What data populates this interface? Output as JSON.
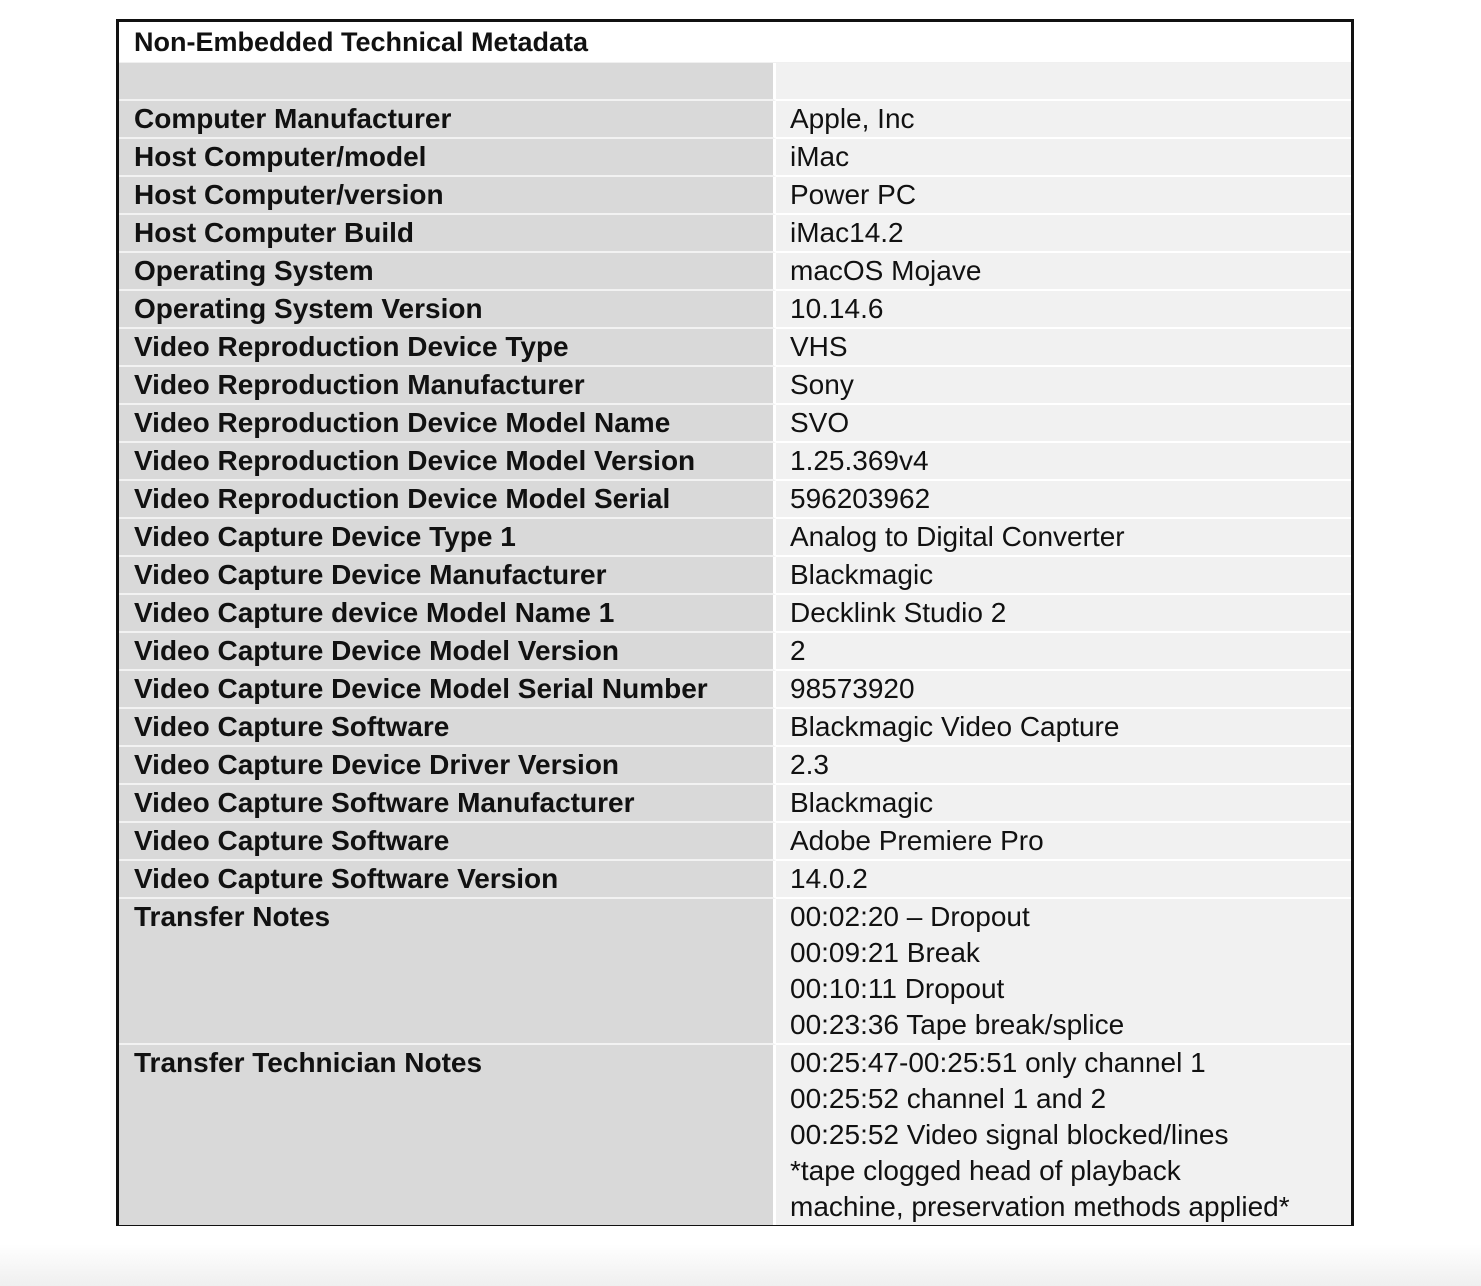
{
  "title": "Non-Embedded Technical Metadata",
  "rows": [
    {
      "label": "Computer Manufacturer",
      "value": "Apple, Inc"
    },
    {
      "label": "Host Computer/model",
      "value": "iMac"
    },
    {
      "label": "Host Computer/version",
      "value": "Power PC"
    },
    {
      "label": "Host Computer Build",
      "value": "iMac14.2"
    },
    {
      "label": "Operating System",
      "value": "macOS Mojave"
    },
    {
      "label": "Operating System Version",
      "value": "10.14.6"
    },
    {
      "label": "Video Reproduction Device Type",
      "value": "VHS"
    },
    {
      "label": "Video Reproduction Manufacturer",
      "value": "Sony"
    },
    {
      "label": "Video Reproduction Device Model Name",
      "value": "SVO"
    },
    {
      "label": "Video Reproduction Device Model Version",
      "value": "1.25.369v4"
    },
    {
      "label": "Video Reproduction Device Model Serial",
      "value": "596203962"
    },
    {
      "label": "Video Capture Device Type 1",
      "value": "Analog to Digital Converter"
    },
    {
      "label": "Video Capture Device Manufacturer",
      "value": "Blackmagic"
    },
    {
      "label": "Video Capture device Model Name 1",
      "value": "Decklink Studio 2"
    },
    {
      "label": "Video Capture Device Model Version",
      "value": "2"
    },
    {
      "label": "Video Capture Device Model Serial Number",
      "value": "98573920"
    },
    {
      "label": "Video Capture Software",
      "value": "Blackmagic Video Capture"
    },
    {
      "label": "Video Capture Device Driver Version",
      "value": "2.3"
    },
    {
      "label": "Video Capture Software Manufacturer",
      "value": "Blackmagic"
    },
    {
      "label": "Video Capture Software",
      "value": "Adobe Premiere Pro"
    },
    {
      "label": "Video Capture Software Version",
      "value": "14.0.2"
    }
  ],
  "transfer_notes": {
    "label": "Transfer Notes",
    "lines": [
      "00:02:20 – Dropout",
      "00:09:21 Break",
      "00:10:11 Dropout",
      "00:23:36 Tape break/splice"
    ]
  },
  "technician_notes": {
    "label": "Transfer Technician Notes",
    "lines": [
      "00:25:47-00:25:51 only channel 1",
      "00:25:52 channel 1 and 2",
      "00:25:52 Video signal blocked/lines",
      "*tape clogged head of playback",
      "machine, preservation methods applied*"
    ]
  }
}
